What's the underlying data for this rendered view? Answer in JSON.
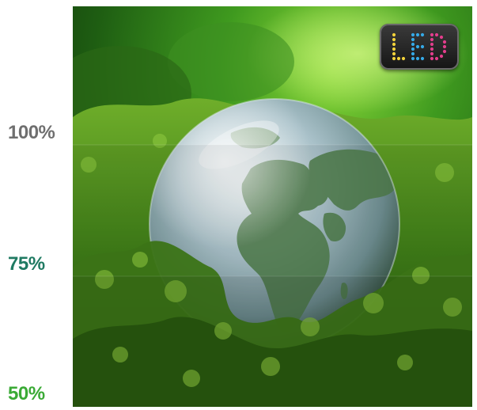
{
  "labels": {
    "top": "100%",
    "middle": "75%",
    "bottom": "50%"
  },
  "colors": {
    "top_label": "#6f6f6f",
    "middle_label": "#1f7a62",
    "bottom_label": "#3aaa35"
  },
  "badge": {
    "text": "LED",
    "letter_colors": [
      "#f1d13a",
      "#35a9e6",
      "#e23d8c"
    ]
  },
  "brightness_levels": [
    1.0,
    0.75,
    0.5
  ]
}
